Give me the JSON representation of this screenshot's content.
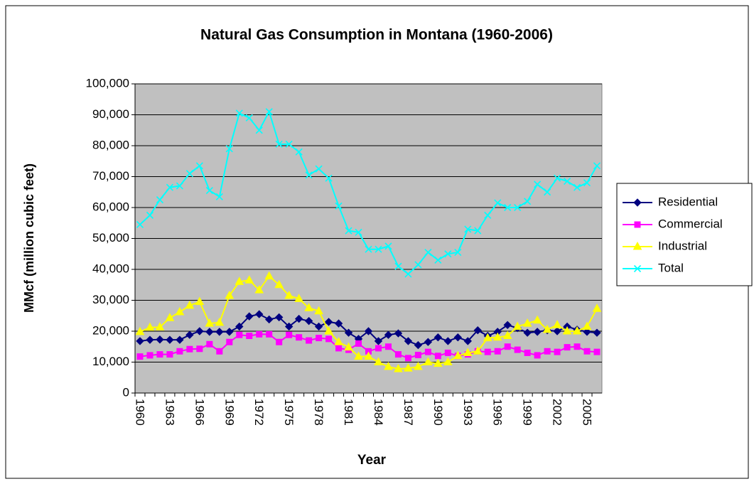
{
  "chart_data": {
    "type": "line",
    "title": "Natural Gas Consumption in Montana (1960-2006)",
    "x_label": "Year",
    "y_label": "MMcf (million cubic feet)",
    "categories": [
      "1960",
      null,
      null,
      "1963",
      null,
      null,
      "1966",
      null,
      null,
      "1969",
      null,
      null,
      "1972",
      null,
      null,
      "1975",
      null,
      null,
      "1978",
      null,
      null,
      "1981",
      null,
      null,
      "1984",
      null,
      null,
      "1987",
      null,
      null,
      "1990",
      null,
      null,
      "1993",
      null,
      null,
      "1996",
      null,
      null,
      "1999",
      null,
      null,
      "2002",
      null,
      null,
      "2005",
      null
    ],
    "series": [
      {
        "name": "Residential",
        "color": "#000080",
        "marker": "diamond",
        "values": [
          16800,
          17200,
          17300,
          17200,
          17200,
          18800,
          20000,
          19800,
          19800,
          19800,
          21500,
          24800,
          25500,
          23800,
          24500,
          21500,
          24000,
          23300,
          21500,
          23000,
          22500,
          19500,
          17500,
          20000,
          16800,
          18800,
          19300,
          16800,
          15500,
          16500,
          18000,
          16800,
          18000,
          16800,
          20300,
          18500,
          19800,
          22000,
          21000,
          19500,
          19800,
          20300,
          20000,
          21500,
          20500,
          19800,
          19500
        ]
      },
      {
        "name": "Commercial",
        "color": "#ff00ff",
        "marker": "square",
        "values": [
          11800,
          12200,
          12500,
          12500,
          13500,
          14200,
          14300,
          15800,
          13500,
          16500,
          18800,
          18500,
          19000,
          19000,
          16500,
          18800,
          18000,
          17000,
          17800,
          17500,
          14500,
          14000,
          16000,
          13500,
          14500,
          15000,
          12500,
          11300,
          12300,
          13300,
          12000,
          13000,
          12000,
          12500,
          13500,
          13300,
          13500,
          15000,
          14000,
          13000,
          12200,
          13500,
          13300,
          14800,
          15000,
          13500,
          13300
        ]
      },
      {
        "name": "Industrial",
        "color": "#ffff00",
        "marker": "triangle",
        "values": [
          19800,
          21200,
          21300,
          24300,
          26200,
          28300,
          29500,
          22500,
          22800,
          31500,
          36000,
          36500,
          33300,
          37800,
          35000,
          31500,
          30500,
          27500,
          26500,
          20000,
          16500,
          14800,
          11800,
          11800,
          10000,
          8500,
          7800,
          8000,
          8500,
          10000,
          9500,
          10000,
          12000,
          13000,
          13500,
          17800,
          18000,
          18500,
          21500,
          22500,
          23500,
          20500,
          22000,
          20000,
          20000,
          21500,
          27300
        ]
      },
      {
        "name": "Total",
        "color": "#00ffff",
        "marker": "x",
        "values": [
          54500,
          57500,
          62500,
          66500,
          67000,
          71000,
          73500,
          65500,
          63500,
          79000,
          90500,
          89000,
          85000,
          91000,
          80500,
          80500,
          78000,
          70500,
          72500,
          69500,
          60500,
          52500,
          52000,
          46500,
          46500,
          47500,
          41000,
          38500,
          41500,
          45500,
          43000,
          45000,
          45500,
          53000,
          52500,
          57500,
          61500,
          60000,
          60000,
          62000,
          67500,
          65000,
          69500,
          68500,
          66500,
          68000,
          73500
        ]
      }
    ],
    "ylim": [
      0,
      100000
    ],
    "yticks": [
      0,
      {
        "value": 10000,
        "label": "10,000"
      },
      {
        "value": 20000,
        "label": "20,000"
      },
      {
        "value": 30000,
        "label": "30,000"
      },
      {
        "value": 40000,
        "label": "40,000"
      },
      {
        "value": 50000,
        "label": "50,000"
      },
      {
        "value": 60000,
        "label": "60,000"
      },
      {
        "value": 70000,
        "label": "70,000"
      },
      {
        "value": 80000,
        "label": "80,000"
      },
      {
        "value": 90000,
        "label": "90,000"
      },
      {
        "value": 100000,
        "label": "100,000"
      }
    ],
    "grid": true,
    "plot_background": "#c0c0c0",
    "legend": "right"
  }
}
